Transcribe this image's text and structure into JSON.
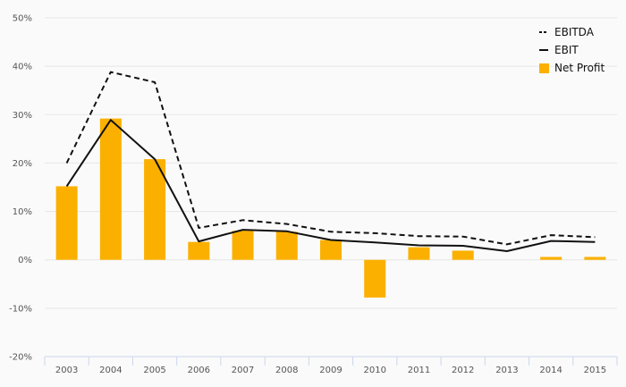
{
  "chart_data": {
    "type": "bar",
    "categories": [
      "2003",
      "2004",
      "2005",
      "2006",
      "2007",
      "2008",
      "2009",
      "2010",
      "2011",
      "2012",
      "2013",
      "2014",
      "2015"
    ],
    "ylim": [
      -20,
      50
    ],
    "yticks": [
      -20,
      -10,
      0,
      10,
      20,
      30,
      40,
      50
    ],
    "ytick_labels": [
      "-20%",
      "-10%",
      "0%",
      "10%",
      "20%",
      "30%",
      "40%",
      "50%"
    ],
    "grid": true,
    "legend_position": "top-right",
    "series": [
      {
        "name": "Net Profit",
        "kind": "bar",
        "color": "#fbb000",
        "values": [
          15.2,
          29.2,
          20.8,
          3.7,
          6.0,
          5.8,
          4.1,
          -7.8,
          2.6,
          1.9,
          null,
          0.6,
          0.6
        ]
      },
      {
        "name": "EBITDA",
        "kind": "line",
        "style": "dashed",
        "color": "#111111",
        "values": [
          20.0,
          38.8,
          36.7,
          6.6,
          8.2,
          7.4,
          5.8,
          5.5,
          4.9,
          4.8,
          3.2,
          5.1,
          4.7
        ]
      },
      {
        "name": "EBIT",
        "kind": "line",
        "style": "solid",
        "color": "#111111",
        "values": [
          15.2,
          28.9,
          20.8,
          3.8,
          6.2,
          5.9,
          4.1,
          3.6,
          3.0,
          2.9,
          1.8,
          3.9,
          3.7
        ]
      }
    ]
  }
}
